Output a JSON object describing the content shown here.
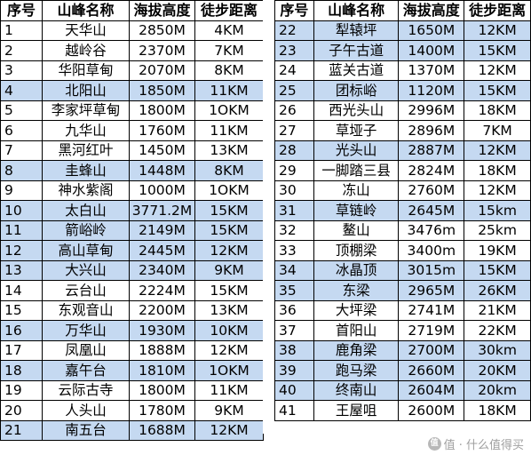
{
  "headers": {
    "no": "序号",
    "name": "山峰名称",
    "altitude": "海拔高度",
    "distance": "徒步距离"
  },
  "left_rows": [
    {
      "no": "1",
      "name": "天华山",
      "altitude": "2850M",
      "distance": "4KM",
      "shaded": false
    },
    {
      "no": "2",
      "name": "越岭谷",
      "altitude": "2370M",
      "distance": "7KM",
      "shaded": false
    },
    {
      "no": "3",
      "name": "华阳草甸",
      "altitude": "2070M",
      "distance": "8KM",
      "shaded": false
    },
    {
      "no": "4",
      "name": "北阳山",
      "altitude": "1850M",
      "distance": "11KM",
      "shaded": true
    },
    {
      "no": "5",
      "name": "李家坪草甸",
      "altitude": "1800M",
      "distance": "1OKM",
      "shaded": false
    },
    {
      "no": "6",
      "name": "九华山",
      "altitude": "1760M",
      "distance": "11KM",
      "shaded": false
    },
    {
      "no": "7",
      "name": "黑河红叶",
      "altitude": "1450M",
      "distance": "13KM",
      "shaded": false
    },
    {
      "no": "8",
      "name": "圭蜂山",
      "altitude": "1448M",
      "distance": "8KM",
      "shaded": true
    },
    {
      "no": "9",
      "name": "神水紫阁",
      "altitude": "1000M",
      "distance": "1OKM",
      "shaded": false
    },
    {
      "no": "10",
      "name": "太白山",
      "altitude": "3771.2M",
      "distance": "15KM",
      "shaded": true
    },
    {
      "no": "11",
      "name": "箭峪岭",
      "altitude": "2149M",
      "distance": "15KM",
      "shaded": true
    },
    {
      "no": "12",
      "name": "高山草甸",
      "altitude": "2445M",
      "distance": "12KM",
      "shaded": true
    },
    {
      "no": "13",
      "name": "大兴山",
      "altitude": "2340M",
      "distance": "9KM",
      "shaded": true
    },
    {
      "no": "14",
      "name": "云台山",
      "altitude": "2224M",
      "distance": "15KM",
      "shaded": false
    },
    {
      "no": "15",
      "name": "东观音山",
      "altitude": "2200M",
      "distance": "13KM",
      "shaded": false
    },
    {
      "no": "16",
      "name": "万华山",
      "altitude": "1930M",
      "distance": "10KM",
      "shaded": true
    },
    {
      "no": "17",
      "name": "凤凰山",
      "altitude": "1888M",
      "distance": "12KM",
      "shaded": false
    },
    {
      "no": "18",
      "name": "嘉午台",
      "altitude": "1810M",
      "distance": "1OKM",
      "shaded": true
    },
    {
      "no": "19",
      "name": "云际古寺",
      "altitude": "1800M",
      "distance": "11KM",
      "shaded": false
    },
    {
      "no": "20",
      "name": "人头山",
      "altitude": "1780M",
      "distance": "9KM",
      "shaded": false
    },
    {
      "no": "21",
      "name": "南五台",
      "altitude": "1688M",
      "distance": "12KM",
      "shaded": true
    }
  ],
  "right_rows": [
    {
      "no": "22",
      "name": "犁辕坪",
      "altitude": "1650M",
      "distance": "12KM",
      "shaded": true
    },
    {
      "no": "23",
      "name": "子午古道",
      "altitude": "1400M",
      "distance": "15KM",
      "shaded": true
    },
    {
      "no": "24",
      "name": "蓝关古道",
      "altitude": "1370M",
      "distance": "12KM",
      "shaded": false
    },
    {
      "no": "25",
      "name": "团标峪",
      "altitude": "1120M",
      "distance": "15KM",
      "shaded": true
    },
    {
      "no": "26",
      "name": "西光头山",
      "altitude": "2996M",
      "distance": "18KM",
      "shaded": false
    },
    {
      "no": "27",
      "name": "草垭子",
      "altitude": "2896M",
      "distance": "7KM",
      "shaded": false
    },
    {
      "no": "28",
      "name": "光头山",
      "altitude": "2887M",
      "distance": "12KM",
      "shaded": true
    },
    {
      "no": "29",
      "name": "一脚踏三县",
      "altitude": "2824M",
      "distance": "18KM",
      "shaded": false
    },
    {
      "no": "30",
      "name": "冻山",
      "altitude": "2760M",
      "distance": "12KM",
      "shaded": false
    },
    {
      "no": "31",
      "name": "草链岭",
      "altitude": "2645M",
      "distance": "15km",
      "shaded": true
    },
    {
      "no": "32",
      "name": "鳌山",
      "altitude": "3476m",
      "distance": "25km",
      "shaded": false
    },
    {
      "no": "33",
      "name": "顶棚梁",
      "altitude": "3400m",
      "distance": "19KM",
      "shaded": false
    },
    {
      "no": "34",
      "name": "冰晶顶",
      "altitude": "3015m",
      "distance": "15KM",
      "shaded": true
    },
    {
      "no": "35",
      "name": "东梁",
      "altitude": "2965M",
      "distance": "26KM",
      "shaded": true
    },
    {
      "no": "36",
      "name": "大坪梁",
      "altitude": "2741M",
      "distance": "21KM",
      "shaded": false
    },
    {
      "no": "37",
      "name": "首阳山",
      "altitude": "2719M",
      "distance": "22KM",
      "shaded": false
    },
    {
      "no": "38",
      "name": "鹿角梁",
      "altitude": "2700M",
      "distance": "30km",
      "shaded": true
    },
    {
      "no": "39",
      "name": "跑马梁",
      "altitude": "2660M",
      "distance": "20KM",
      "shaded": true
    },
    {
      "no": "40",
      "name": "终南山",
      "altitude": "2604M",
      "distance": "20km",
      "shaded": true
    },
    {
      "no": "41",
      "name": "王屋咀",
      "altitude": "2600M",
      "distance": "18KM",
      "shaded": false
    }
  ],
  "watermark": {
    "text": "值 · 什么值得买",
    "icon_text": "值"
  }
}
